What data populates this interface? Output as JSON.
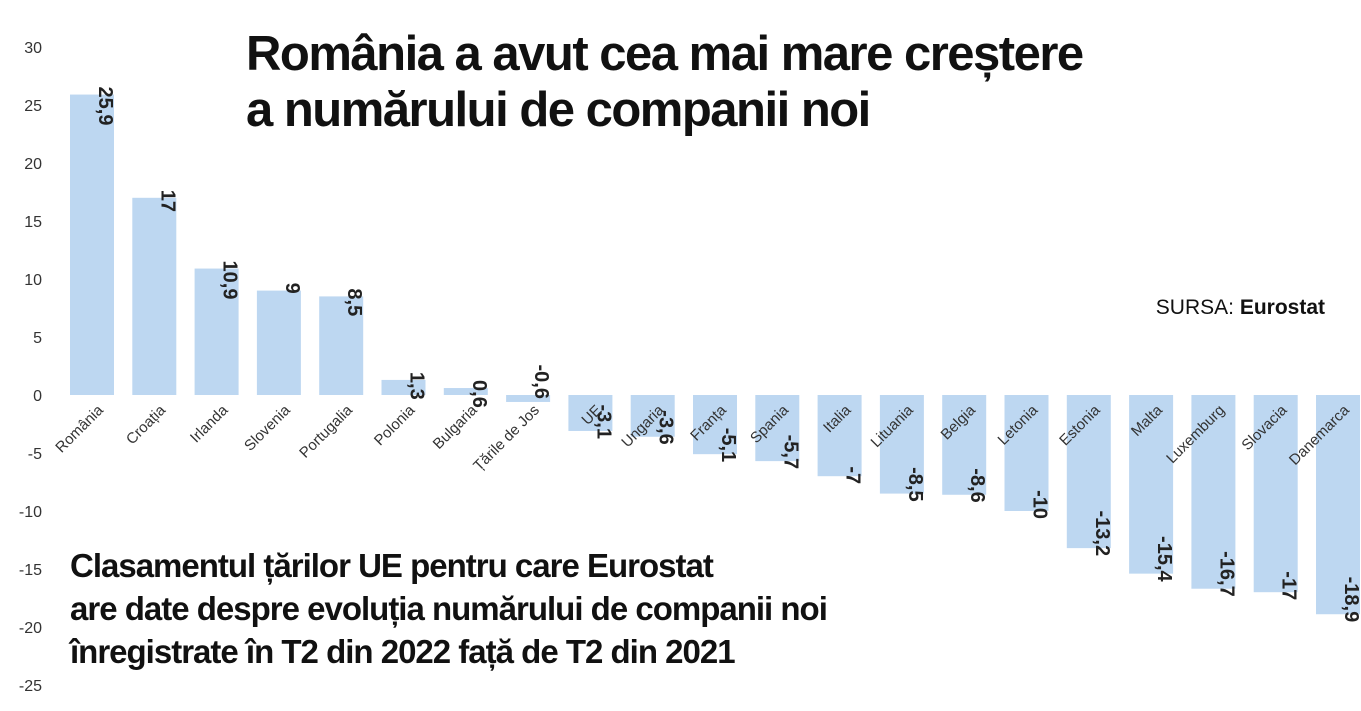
{
  "chart_data": {
    "type": "bar",
    "title": [
      "România a avut cea mai mare creștere",
      "a numărului de companii noi"
    ],
    "subtitle": [
      "Clasamentul țărilor UE pentru care Eurostat",
      "are date despre evoluția numărului de companii noi",
      "înregistrate în T2 din 2022 față de T2 din 2021"
    ],
    "source_label": "SURSA:",
    "source_name": "Eurostat",
    "categories": [
      "România",
      "Croația",
      "Irlanda",
      "Slovenia",
      "Portugalia",
      "Polonia",
      "Bulgaria",
      "Țările de Jos",
      "UE",
      "Ungaria",
      "Franța",
      "Spania",
      "Italia",
      "Lituania",
      "Belgia",
      "Letonia",
      "Estonia",
      "Malta",
      "Luxemburg",
      "Slovacia",
      "Danemarca"
    ],
    "values": [
      25.9,
      17,
      10.9,
      9,
      8.5,
      1.3,
      0.6,
      -0.6,
      -3.1,
      -3.6,
      -5.1,
      -5.7,
      -7,
      -8.5,
      -8.6,
      -10,
      -13.2,
      -15.4,
      -16.7,
      -17,
      -18.9
    ],
    "value_labels": [
      "25,9",
      "17",
      "10,9",
      "9",
      "8,5",
      "1,3",
      "0,6",
      "-0,6",
      "-3,1",
      "-3,6",
      "-5,1",
      "-5,7",
      "-7",
      "-8,5",
      "-8,6",
      "-10",
      "-13,2",
      "-15,4",
      "-16,7",
      "-17",
      "-18,9"
    ],
    "ylim": [
      -25,
      30
    ],
    "yticks": [
      30,
      25,
      20,
      15,
      10,
      5,
      0,
      -5,
      -10,
      -15,
      -20,
      -25
    ],
    "bar_color": "#bdd7f1",
    "grid": false,
    "xlabel": "",
    "ylabel": ""
  }
}
